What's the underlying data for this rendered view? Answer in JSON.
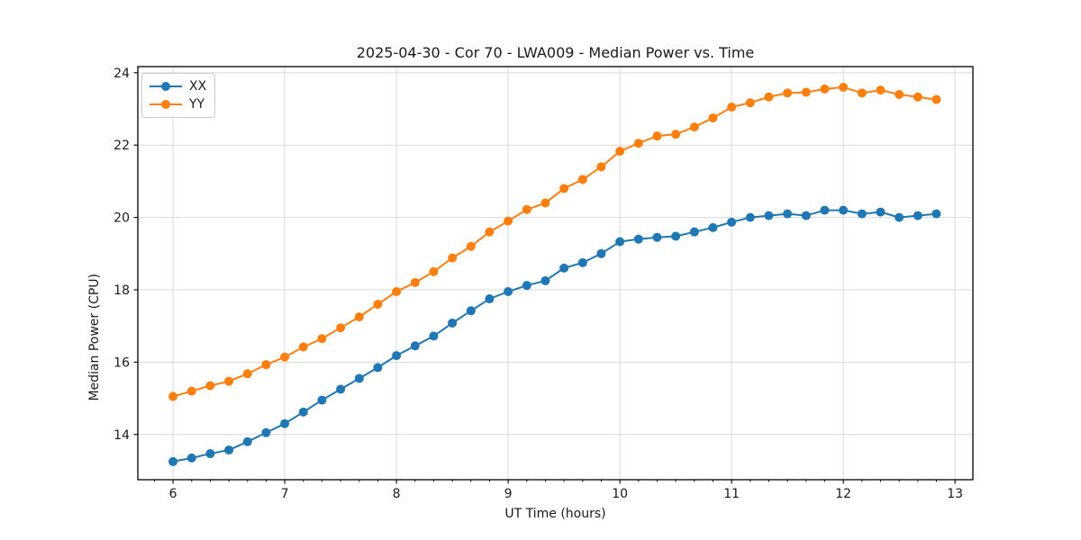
{
  "chart_data": {
    "type": "line",
    "title": "2025-04-30 - Cor 70 - LWA009 - Median Power vs. Time",
    "xlabel": "UT Time (hours)",
    "ylabel": "Median Power (CPU)",
    "x": [
      6.0,
      6.167,
      6.333,
      6.5,
      6.667,
      6.833,
      7.0,
      7.167,
      7.333,
      7.5,
      7.667,
      7.833,
      8.0,
      8.167,
      8.333,
      8.5,
      8.667,
      8.833,
      9.0,
      9.167,
      9.333,
      9.5,
      9.667,
      9.833,
      10.0,
      10.167,
      10.333,
      10.5,
      10.667,
      10.833,
      11.0,
      11.167,
      11.333,
      11.5,
      11.667,
      11.833,
      12.0,
      12.167,
      12.333,
      12.5,
      12.667,
      12.833
    ],
    "series": [
      {
        "name": "XX",
        "color": "#1f77b4",
        "values": [
          13.25,
          13.35,
          13.47,
          13.57,
          13.8,
          14.05,
          14.3,
          14.62,
          14.95,
          15.25,
          15.55,
          15.85,
          16.18,
          16.45,
          16.72,
          17.08,
          17.42,
          17.75,
          17.95,
          18.12,
          18.25,
          18.6,
          18.75,
          19.0,
          19.33,
          19.4,
          19.45,
          19.48,
          19.6,
          19.72,
          19.87,
          20.0,
          20.05,
          20.1,
          20.05,
          20.2,
          20.2,
          20.1,
          20.15,
          20.0,
          20.05,
          20.1
        ]
      },
      {
        "name": "YY",
        "color": "#ff7f0e",
        "values": [
          15.05,
          15.2,
          15.35,
          15.47,
          15.68,
          15.93,
          16.14,
          16.42,
          16.65,
          16.95,
          17.25,
          17.6,
          17.95,
          18.2,
          18.5,
          18.88,
          19.2,
          19.6,
          19.9,
          20.22,
          20.4,
          20.8,
          21.05,
          21.4,
          21.83,
          22.05,
          22.25,
          22.3,
          22.5,
          22.75,
          23.05,
          23.17,
          23.33,
          23.44,
          23.46,
          23.55,
          23.6,
          23.44,
          23.52,
          23.4,
          23.33,
          23.26
        ]
      }
    ],
    "xlim": [
      5.685,
      13.16
    ],
    "ylim": [
      12.75,
      24.17
    ],
    "xticks": [
      6,
      7,
      8,
      9,
      10,
      11,
      12,
      13
    ],
    "yticks": [
      14,
      16,
      18,
      20,
      22,
      24
    ],
    "x_minor_step": 0.16667,
    "grid": true,
    "legend_position": "upper-left",
    "grid_color": "#d9d9d9"
  }
}
